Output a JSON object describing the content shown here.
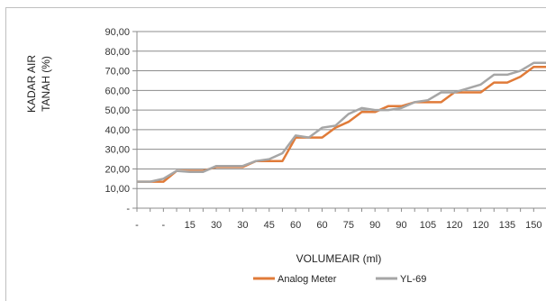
{
  "chart_data": {
    "type": "line",
    "xlabel": "VOLUMEAIR (ml)",
    "ylabel_lines": [
      "KADAR AIR",
      "TANAH (%)"
    ],
    "ylim": [
      0,
      90
    ],
    "yticks": [
      0,
      10,
      20,
      30,
      40,
      50,
      60,
      70,
      80,
      90
    ],
    "ytick_labels": [
      "-",
      "10,00",
      "20,00",
      "30,00",
      "40,00",
      "50,00",
      "60,00",
      "70,00",
      "80,00",
      "90,00"
    ],
    "x_tick_labels": [
      "-",
      "-",
      "15",
      "30",
      "30",
      "45",
      "60",
      "60",
      "75",
      "90",
      "90",
      "105",
      "120",
      "120",
      "135",
      "150"
    ],
    "x_tick_indices": [
      0,
      2,
      4,
      6,
      8,
      10,
      12,
      14,
      16,
      18,
      20,
      22,
      24,
      26,
      28,
      30
    ],
    "x_count": 32,
    "grid": true,
    "legend_position": "bottom",
    "series": [
      {
        "name": "Analog Meter",
        "color": "#e07b39",
        "values": [
          13.5,
          13.5,
          13.5,
          19,
          19,
          19,
          21,
          21,
          21,
          24,
          24,
          24,
          36,
          36,
          36,
          41,
          44,
          49,
          49,
          52,
          52,
          54,
          54,
          54,
          59,
          59,
          59,
          64,
          64,
          67,
          72,
          72
        ]
      },
      {
        "name": "YL-69",
        "color": "#a6a6a6",
        "values": [
          13.5,
          13.5,
          15,
          19,
          18.5,
          18.5,
          21.5,
          21.5,
          21.5,
          24,
          25,
          28,
          37,
          36,
          41,
          42,
          48,
          51,
          50,
          50,
          51,
          54,
          55,
          59,
          59,
          61,
          63,
          68,
          68,
          70,
          74,
          74
        ]
      }
    ]
  }
}
